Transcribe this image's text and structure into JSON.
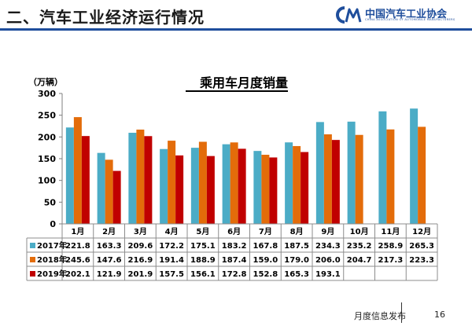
{
  "header": {
    "title": "二、汽车工业经济运行情况",
    "logo_cn": "中国汽车工业协会",
    "logo_en": "CHINA ASSOCIATION OF AUTOMOBILE MANUFACTURERS",
    "brand_color": "#1f4e9c"
  },
  "chart_data": {
    "type": "bar",
    "title": "乘用车月度销量",
    "ylabel": "（万辆）",
    "xlabel": "",
    "ylim": [
      0,
      300
    ],
    "yticks": [
      0,
      50,
      100,
      150,
      200,
      250,
      300
    ],
    "grid": false,
    "legend": "data-table-left",
    "categories": [
      "1月",
      "2月",
      "3月",
      "4月",
      "5月",
      "6月",
      "7月",
      "8月",
      "9月",
      "10月",
      "11月",
      "12月"
    ],
    "series": [
      {
        "name": "2017年",
        "color": "#4bacc6",
        "values": [
          221.8,
          163.3,
          209.6,
          172.2,
          175.1,
          183.2,
          167.8,
          187.5,
          234.3,
          235.2,
          258.9,
          265.3
        ]
      },
      {
        "name": "2018年",
        "color": "#e36c0a",
        "values": [
          245.6,
          147.6,
          216.9,
          191.4,
          188.9,
          187.4,
          159.0,
          179.0,
          206.0,
          204.7,
          217.3,
          223.3
        ]
      },
      {
        "name": "2019年",
        "color": "#c00000",
        "values": [
          202.1,
          121.9,
          201.9,
          157.5,
          156.1,
          172.8,
          152.8,
          165.3,
          193.1,
          null,
          null,
          null
        ]
      }
    ]
  },
  "footer": {
    "text": "月度信息发布",
    "page_number": "16"
  }
}
